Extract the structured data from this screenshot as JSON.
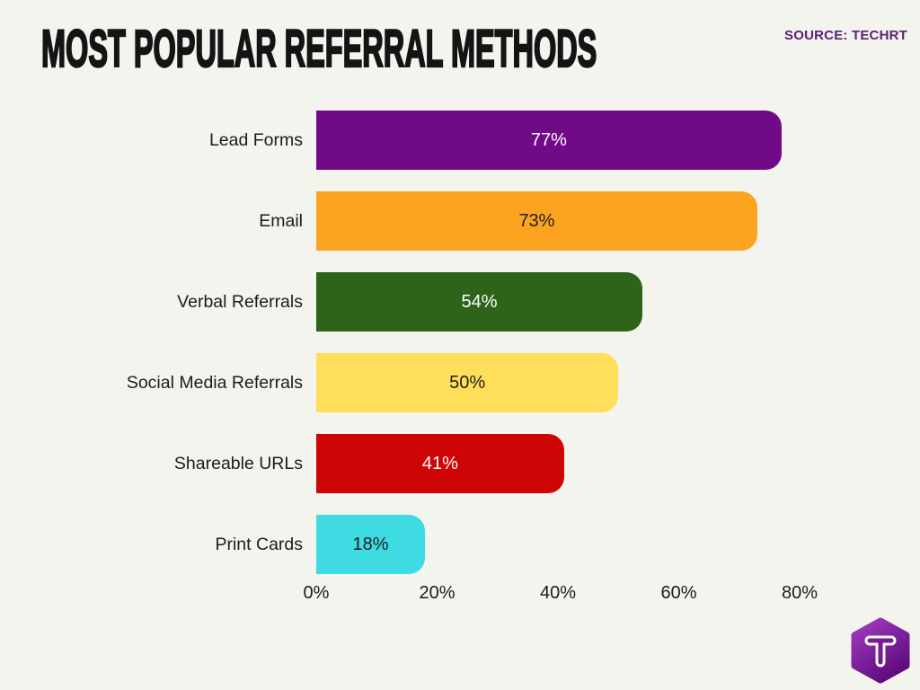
{
  "header": {
    "title": "MOST POPULAR REFERRAL METHODS",
    "source_label": "SOURCE: TECHRT"
  },
  "colors": {
    "background": "#f3f4ee",
    "title_text": "#141414",
    "source_text": "#5c2173",
    "axis_text": "#1b1b1b",
    "category_text": "#1c1c1c",
    "logo_gradient_top": "#a43cc2",
    "logo_gradient_bottom": "#5f0c7d"
  },
  "chart_data": {
    "type": "bar",
    "orientation": "horizontal",
    "title": "MOST POPULAR REFERRAL METHODS",
    "categories": [
      "Lead Forms",
      "Email",
      "Verbal Referrals",
      "Social Media Referrals",
      "Shareable URLs",
      "Print Cards"
    ],
    "values": [
      77,
      73,
      54,
      50,
      41,
      18
    ],
    "value_labels": [
      "77%",
      "73%",
      "54%",
      "50%",
      "41%",
      "18%"
    ],
    "bar_colors": [
      "#710a87",
      "#fca41f",
      "#2d6419",
      "#ffde5a",
      "#cd0505",
      "#3fdbe3"
    ],
    "value_text_colors": [
      "#ffffff",
      "#1f1f1f",
      "#ffffff",
      "#1f1f1f",
      "#ffffff",
      "#1f1f1f"
    ],
    "xlabel": "",
    "ylabel": "",
    "x_ticks": [
      "0%",
      "20%",
      "40%",
      "60%",
      "80%"
    ],
    "xlim": [
      0,
      80
    ],
    "grid": false,
    "legend": false
  },
  "logo": {
    "letter": "T"
  }
}
